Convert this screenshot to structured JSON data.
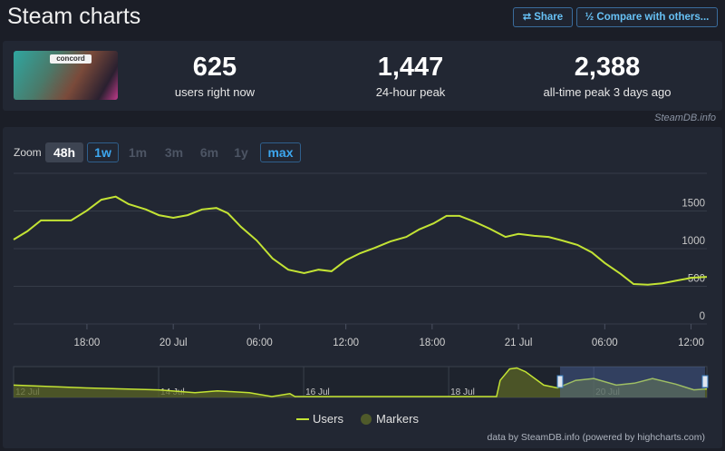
{
  "header": {
    "title": "Steam charts",
    "buttons": [
      "Share",
      "Compare with others..."
    ]
  },
  "game": {
    "image_text": "concord"
  },
  "stats": [
    {
      "value": "625",
      "label": "users right now"
    },
    {
      "value": "1,447",
      "label": "24-hour peak"
    },
    {
      "value": "2,388",
      "label": "all-time peak 3 days ago"
    }
  ],
  "watermark": "SteamDB.info",
  "zoom": {
    "label": "Zoom",
    "options": [
      "48h",
      "1w",
      "1m",
      "3m",
      "6m",
      "1y",
      "max"
    ]
  },
  "chart_data": [
    {
      "type": "line",
      "x": [
        12.9,
        13.85,
        14.8,
        16.9,
        18.0,
        19.0,
        20.0,
        20.9,
        22.1,
        23.0,
        24.0,
        25.0,
        26.0,
        27.0,
        27.8,
        28.7,
        29.8,
        30.9,
        32.0,
        33.1,
        34.1,
        35.0,
        36.0,
        37.0,
        38.0,
        39.1,
        40.2,
        41.1,
        42.1,
        43.0,
        43.9,
        44.9,
        46.0,
        47.1,
        48.0,
        49.1,
        50.1,
        51.0,
        52.1,
        53.1,
        54.0,
        55.1,
        56.0,
        57.0,
        58.0,
        59.1,
        60.1,
        61.1
      ],
      "series": [
        {
          "name": "Users",
          "color": "#c3e334",
          "values": [
            1120,
            1230,
            1375,
            1375,
            1505,
            1650,
            1690,
            1590,
            1520,
            1445,
            1410,
            1445,
            1520,
            1540,
            1470,
            1290,
            1110,
            870,
            720,
            675,
            720,
            700,
            845,
            940,
            1010,
            1095,
            1155,
            1255,
            1335,
            1435,
            1435,
            1360,
            1265,
            1155,
            1195,
            1170,
            1155,
            1110,
            1050,
            950,
            810,
            665,
            530,
            520,
            540,
            580,
            615,
            625
          ]
        }
      ],
      "legend_extra": [
        {
          "name": "Markers",
          "color": "#4f5a2a"
        }
      ],
      "xlim": [
        12.9,
        61.1
      ],
      "xticks": [
        {
          "value": 18,
          "label": "18:00"
        },
        {
          "value": 24,
          "label": "20 Jul"
        },
        {
          "value": 30,
          "label": "06:00"
        },
        {
          "value": 36,
          "label": "12:00"
        },
        {
          "value": 42,
          "label": "18:00"
        },
        {
          "value": 48,
          "label": "21 Jul"
        },
        {
          "value": 54,
          "label": "06:00"
        },
        {
          "value": 60,
          "label": "12:00"
        }
      ],
      "ylim": [
        0,
        2000
      ],
      "yticks": [
        0,
        500,
        1000,
        1500
      ],
      "grid": true,
      "credits": "data by SteamDB.info (powered by highcharts.com)"
    },
    {
      "type": "area",
      "x": [
        12.0,
        13.0,
        14.0,
        14.5,
        14.81,
        15.25,
        15.56,
        15.81,
        15.88,
        16.81,
        18.0,
        18.66,
        18.71,
        18.84,
        18.94,
        19.06,
        19.31,
        19.5,
        19.75,
        20.0,
        20.31,
        20.56,
        20.81,
        21.13,
        21.38,
        21.56
      ],
      "series": [
        {
          "name": "Users",
          "color": "#c3e334",
          "values": [
            1000,
            770,
            615,
            385,
            540,
            385,
            77,
            310,
            77,
            77,
            77,
            77,
            1385,
            2310,
            2388,
            2080,
            1000,
            770,
            1385,
            1540,
            1000,
            1155,
            1540,
            1080,
            615,
            690
          ]
        }
      ],
      "xlim": [
        12.0,
        21.56
      ],
      "xticks": [
        {
          "value": 12,
          "label": "12 Jul"
        },
        {
          "value": 14,
          "label": "14 Jul"
        },
        {
          "value": 16,
          "label": "16 Jul"
        },
        {
          "value": 18,
          "label": "18 Jul"
        },
        {
          "value": 20,
          "label": "20 Jul"
        }
      ],
      "ylim": [
        0,
        2500
      ]
    }
  ]
}
